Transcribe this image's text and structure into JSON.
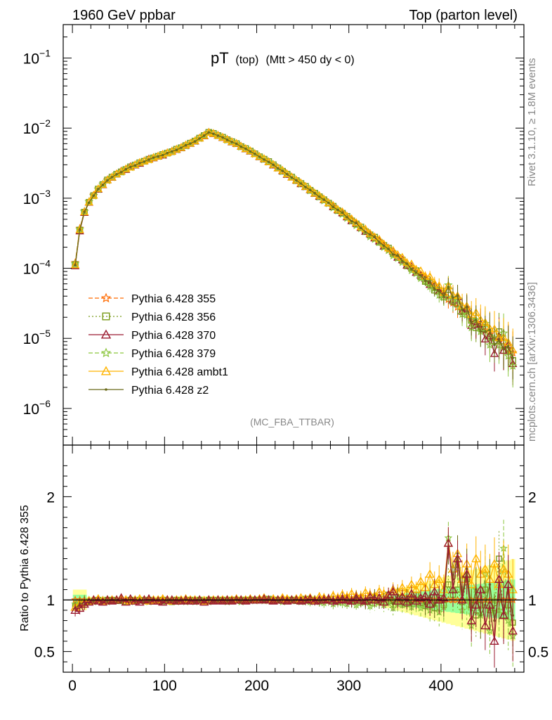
{
  "header": {
    "left": "1960 GeV ppbar",
    "right": "Top (parton level)"
  },
  "side_text": {
    "rivet": "Rivet 3.1.10, ≥ 1.8M events",
    "mcplots": "mcplots.cern.ch [arXiv:1306.3436]"
  },
  "plot_title": {
    "main": "pT",
    "sub": "(top)",
    "cut": "(Mtt > 450 dy < 0)"
  },
  "analysis_tag": "(MC_FBA_TTBAR)",
  "ratio_ylabel": "Ratio to Pythia 6.428 355",
  "colors": {
    "s355": "#ff6a00",
    "s356": "#7a9a1a",
    "s370": "#9b1b30",
    "s379": "#8cc63f",
    "ambt1": "#ffb400",
    "z2": "#6b6b1a",
    "band_yellow": "#ffff99",
    "band_green": "#99ff99"
  },
  "chart_data": [
    {
      "type": "line",
      "y_scale": "log",
      "ylim": [
        3e-07,
        0.3
      ],
      "xlim": [
        -10,
        490
      ],
      "y_ticks": [
        {
          "mant": "10",
          "exp": "−1",
          "v": 0.1
        },
        {
          "mant": "10",
          "exp": "−2",
          "v": 0.01
        },
        {
          "mant": "10",
          "exp": "−3",
          "v": 0.001
        },
        {
          "mant": "10",
          "exp": "−4",
          "v": 0.0001
        },
        {
          "mant": "10",
          "exp": "−5",
          "v": 1e-05
        },
        {
          "mant": "10",
          "exp": "−6",
          "v": 1e-06
        }
      ],
      "x": [
        3,
        8,
        13,
        18,
        23,
        28,
        33,
        38,
        43,
        48,
        53,
        58,
        63,
        68,
        73,
        78,
        83,
        88,
        93,
        98,
        103,
        108,
        113,
        118,
        123,
        128,
        133,
        138,
        143,
        148,
        153,
        158,
        163,
        168,
        173,
        178,
        183,
        188,
        193,
        198,
        203,
        208,
        213,
        218,
        223,
        228,
        233,
        238,
        243,
        248,
        253,
        258,
        263,
        268,
        273,
        278,
        283,
        288,
        293,
        298,
        303,
        308,
        313,
        318,
        323,
        328,
        333,
        338,
        343,
        348,
        353,
        358,
        363,
        368,
        373,
        378,
        383,
        388,
        393,
        398,
        403,
        408,
        413,
        418,
        423,
        428,
        433,
        438,
        443,
        448,
        453,
        458,
        463,
        468,
        473,
        478
      ],
      "y_nominal": [
        0.00012,
        0.00037,
        0.00065,
        0.00089,
        0.0011,
        0.00135,
        0.00158,
        0.00182,
        0.002,
        0.00222,
        0.0024,
        0.00262,
        0.0028,
        0.003,
        0.0032,
        0.0034,
        0.0036,
        0.0038,
        0.004,
        0.0042,
        0.00445,
        0.0047,
        0.005,
        0.0053,
        0.0057,
        0.0061,
        0.0066,
        0.0072,
        0.0079,
        0.0087,
        0.0084,
        0.0079,
        0.0074,
        0.0069,
        0.0064,
        0.006,
        0.0055,
        0.0051,
        0.0047,
        0.0043,
        0.0039,
        0.0036,
        0.0033,
        0.003,
        0.0027,
        0.00245,
        0.0022,
        0.002,
        0.0018,
        0.00162,
        0.00146,
        0.00131,
        0.00118,
        0.00106,
        0.00095,
        0.00085,
        0.00076,
        0.00068,
        0.00061,
        0.00054,
        0.00048,
        0.00043,
        0.00038,
        0.00034,
        0.0003,
        0.00027,
        0.00024,
        0.00021,
        0.000185,
        0.000164,
        0.000145,
        0.000128,
        0.000113,
        0.0001,
        8.8e-05,
        7.8e-05,
        6.9e-05,
        6.1e-05,
        5.3e-05,
        4.7e-05,
        4.1e-05,
        3.6e-05,
        3.2e-05,
        2.8e-05,
        2.45e-05,
        2.15e-05,
        1.9e-05,
        1.67e-05,
        1.47e-05,
        1.3e-05,
        1.15e-05,
        1.01e-05,
        8.9e-06,
        7.9e-06,
        7e-06,
        6.2e-06
      ],
      "series": [
        {
          "name": "Pythia 6.428 355",
          "color_key": "s355",
          "marker": "star",
          "dash": "6,3"
        },
        {
          "name": "Pythia 6.428 356",
          "color_key": "s356",
          "marker": "square",
          "dash": "2,3"
        },
        {
          "name": "Pythia 6.428 370",
          "color_key": "s370",
          "marker": "triangle",
          "dash": ""
        },
        {
          "name": "Pythia 6.428 379",
          "color_key": "s379",
          "marker": "star",
          "dash": "6,3"
        },
        {
          "name": "Pythia 6.428 ambt1",
          "color_key": "ambt1",
          "marker": "triangle",
          "dash": ""
        },
        {
          "name": "Pythia 6.428 z2",
          "color_key": "z2",
          "marker": "dot",
          "dash": ""
        }
      ]
    },
    {
      "type": "line",
      "role": "ratio",
      "ylim": [
        0.3,
        2.5
      ],
      "xlim": [
        -10,
        490
      ],
      "y_ticks": [
        "0.5",
        "1",
        "2"
      ],
      "x_ticks": [
        "0",
        "100",
        "200",
        "300",
        "400"
      ],
      "ratios": {
        "356": [
          0.94,
          0.95,
          0.97,
          0.98,
          0.99,
          1.0,
          0.99,
          1.0,
          1.0,
          0.99,
          0.99,
          0.98,
          1.0,
          0.99,
          1.0,
          0.99,
          1.0,
          0.99,
          0.99,
          1.0,
          0.99,
          0.98,
          1.0,
          0.99,
          0.99,
          1.0,
          0.99,
          1.0,
          0.99,
          1.0,
          1.0,
          0.99,
          1.0,
          0.99,
          1.0,
          1.0,
          0.99,
          1.0,
          1.0,
          1.0,
          1.0,
          1.0,
          1.01,
          1.0,
          1.0,
          0.99,
          1.0,
          1.0,
          0.99,
          1.0,
          1.01,
          0.99,
          1.0,
          0.99,
          1.0,
          1.0,
          1.01,
          0.98,
          1.0,
          1.02,
          0.99,
          1.0,
          1.02,
          0.98,
          1.0,
          1.03,
          0.98,
          1.01,
          1.05,
          0.99,
          0.98,
          1.02,
          0.96,
          1.0,
          1.05,
          0.97,
          0.94,
          1.0,
          0.92,
          1.02,
          0.95,
          1.15,
          1.05,
          1.1,
          0.98,
          1.2,
          0.95,
          0.85,
          0.95,
          1.1,
          0.9,
          0.92,
          1.4,
          0.85,
          0.95,
          0.78
        ],
        "370": [
          0.9,
          0.92,
          0.96,
          0.98,
          1.0,
          0.99,
          0.98,
          1.0,
          0.99,
          1.0,
          1.02,
          0.98,
          1.01,
          0.99,
          0.98,
          1.0,
          1.01,
          0.99,
          0.99,
          0.98,
          1.0,
          1.0,
          0.99,
          0.99,
          1.0,
          0.99,
          0.99,
          1.0,
          0.98,
          1.0,
          0.99,
          1.0,
          0.99,
          1.0,
          0.99,
          1.0,
          1.0,
          0.99,
          1.0,
          1.0,
          1.0,
          1.01,
          1.0,
          0.99,
          1.0,
          1.0,
          0.99,
          1.0,
          1.0,
          0.99,
          1.0,
          1.01,
          0.99,
          1.0,
          1.0,
          1.01,
          0.99,
          1.0,
          1.01,
          1.0,
          0.99,
          1.02,
          1.0,
          0.99,
          1.03,
          1.0,
          1.02,
          0.98,
          1.05,
          1.08,
          0.99,
          1.03,
          0.98,
          1.06,
          0.99,
          1.02,
          1.04,
          0.96,
          1.08,
          1.0,
          1.02,
          1.55,
          1.1,
          1.4,
          1.0,
          1.25,
          0.8,
          0.95,
          1.1,
          0.75,
          0.95,
          0.6,
          1.2,
          0.85,
          1.15,
          0.7
        ],
        "379": [
          0.96,
          0.97,
          0.99,
          1.0,
          0.98,
          0.99,
          1.0,
          0.98,
          0.99,
          1.0,
          0.99,
          1.0,
          0.98,
          0.99,
          1.0,
          0.99,
          0.98,
          1.0,
          0.99,
          0.98,
          0.99,
          1.0,
          0.98,
          0.99,
          0.98,
          0.99,
          0.98,
          0.99,
          0.99,
          0.98,
          1.0,
          0.99,
          0.99,
          0.98,
          0.99,
          1.0,
          0.98,
          0.99,
          1.0,
          0.99,
          1.0,
          0.99,
          1.0,
          0.99,
          1.0,
          0.98,
          0.99,
          1.0,
          0.99,
          0.98,
          0.99,
          0.98,
          0.99,
          0.98,
          0.97,
          0.99,
          0.96,
          0.98,
          0.97,
          0.96,
          0.98,
          0.95,
          0.97,
          0.99,
          0.94,
          0.96,
          0.98,
          0.95,
          0.97,
          0.92,
          0.96,
          0.95,
          0.98,
          0.93,
          0.96,
          0.92,
          0.95,
          0.9,
          0.97,
          0.88,
          0.93,
          1.6,
          1.1,
          1.3,
          0.9,
          1.0,
          0.75,
          1.1,
          0.85,
          1.25,
          0.7,
          1.0,
          0.9,
          1.5,
          0.8,
          0.65
        ],
        "ambt1": [
          0.93,
          0.96,
          0.98,
          0.99,
          1.0,
          1.01,
          0.99,
          1.0,
          1.0,
          1.0,
          1.01,
          1.0,
          0.99,
          1.0,
          1.01,
          1.0,
          0.99,
          1.0,
          1.0,
          1.01,
          1.0,
          0.99,
          1.0,
          1.0,
          1.01,
          1.0,
          1.0,
          1.0,
          0.99,
          1.0,
          1.0,
          1.0,
          1.0,
          1.0,
          1.0,
          1.01,
          1.0,
          1.0,
          1.01,
          1.0,
          1.01,
          1.02,
          1.0,
          1.01,
          1.0,
          1.02,
          1.01,
          1.0,
          1.01,
          1.02,
          1.01,
          1.02,
          1.0,
          1.03,
          1.02,
          1.01,
          1.04,
          1.02,
          1.05,
          1.03,
          1.06,
          1.04,
          1.03,
          1.07,
          1.05,
          1.04,
          1.08,
          1.06,
          1.05,
          1.1,
          1.08,
          1.12,
          1.07,
          1.15,
          1.1,
          1.18,
          1.12,
          1.25,
          1.15,
          1.2,
          1.1,
          1.55,
          1.3,
          1.45,
          1.2,
          1.35,
          1.15,
          1.4,
          1.25,
          1.3,
          1.2,
          1.35,
          1.15,
          1.3,
          1.25,
          1.1
        ],
        "z2": [
          0.92,
          0.96,
          0.98,
          0.97,
          0.99,
          1.0,
          0.98,
          0.99,
          1.0,
          0.99,
          0.98,
          0.99,
          1.0,
          0.98,
          0.99,
          0.98,
          0.99,
          1.0,
          0.99,
          0.98,
          0.99,
          0.99,
          0.98,
          0.99,
          1.0,
          0.99,
          0.98,
          0.99,
          0.99,
          1.0,
          0.99,
          0.99,
          1.0,
          0.99,
          0.99,
          1.0,
          0.99,
          1.0,
          0.99,
          1.0,
          1.0,
          0.99,
          1.0,
          1.0,
          0.99,
          1.0,
          1.0,
          0.99,
          1.0,
          1.0,
          0.99,
          1.0,
          1.0,
          0.99,
          1.0,
          1.01,
          0.99,
          1.0,
          1.02,
          0.99,
          0.98,
          1.03,
          0.99,
          0.97,
          1.01,
          1.04,
          0.98,
          1.0,
          1.02,
          0.96,
          1.05,
          0.99,
          1.03,
          0.97,
          0.99,
          1.02,
          0.96,
          1.04,
          0.95,
          1.0,
          0.98,
          1.5,
          1.2,
          1.45,
          1.05,
          1.3,
          0.9,
          1.1,
          0.85,
          0.95,
          1.15,
          0.8,
          1.05,
          0.9,
          1.1,
          0.85
        ]
      }
    }
  ]
}
